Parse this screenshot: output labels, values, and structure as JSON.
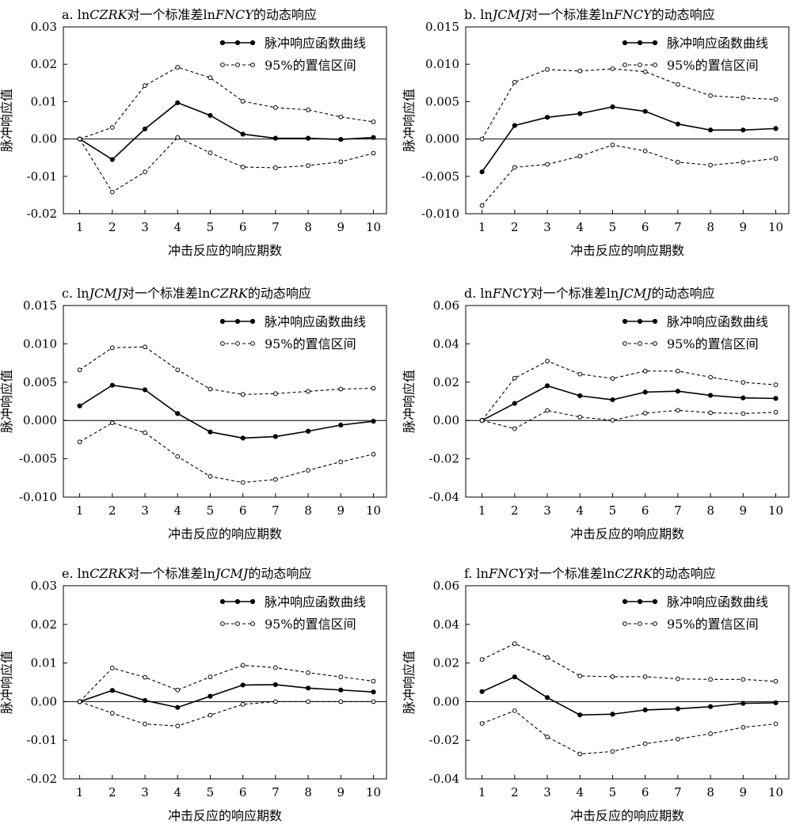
{
  "legend": {
    "irf": "脉冲响应函数曲线",
    "ci": "95%的置信区间"
  },
  "chart_data": [
    {
      "type": "line",
      "title_parts": [
        {
          "text": "a. ln",
          "italic": false
        },
        {
          "text": "CZRK",
          "italic": true
        },
        {
          "text": "对一个标准差ln",
          "italic": false
        },
        {
          "text": "FNCY",
          "italic": true
        },
        {
          "text": "的动态响应",
          "italic": false
        }
      ],
      "xlabel": "冲击反应的响应期数",
      "ylabel": "脉冲响应值",
      "x": [
        1,
        2,
        3,
        4,
        5,
        6,
        7,
        8,
        9,
        10
      ],
      "xlim": [
        0.5,
        10.4
      ],
      "ylim": [
        -0.02,
        0.03
      ],
      "yticks": [
        "0.03",
        "0.02",
        "0.01",
        "0.00",
        "-0.01",
        "-0.02"
      ],
      "ytick_values": [
        0.03,
        0.02,
        0.01,
        0.0,
        -0.01,
        -0.02
      ],
      "legend_position": "top-right",
      "series": [
        {
          "role": "irf",
          "values": [
            0.0,
            -0.0055,
            0.0027,
            0.0097,
            0.0063,
            0.0013,
            0.0002,
            0.0002,
            -0.0001,
            0.0004
          ]
        },
        {
          "role": "ci_upper",
          "values": [
            0.0,
            0.0031,
            0.0143,
            0.0192,
            0.0164,
            0.0101,
            0.0084,
            0.0078,
            0.0059,
            0.0046
          ]
        },
        {
          "role": "ci_lower",
          "values": [
            0.0,
            -0.0142,
            -0.0088,
            0.0004,
            -0.0037,
            -0.0075,
            -0.0077,
            -0.0071,
            -0.0061,
            -0.0038
          ]
        }
      ]
    },
    {
      "type": "line",
      "title_parts": [
        {
          "text": "b. ln",
          "italic": false
        },
        {
          "text": "JCMJ",
          "italic": true
        },
        {
          "text": "对一个标准差ln",
          "italic": false
        },
        {
          "text": "FNCY",
          "italic": true
        },
        {
          "text": "的动态响应",
          "italic": false
        }
      ],
      "xlabel": "冲击反应的响应期数",
      "ylabel": "脉冲响应值",
      "x": [
        1,
        2,
        3,
        4,
        5,
        6,
        7,
        8,
        9,
        10
      ],
      "xlim": [
        0.5,
        10.4
      ],
      "ylim": [
        -0.01,
        0.015
      ],
      "yticks": [
        "0.015",
        "0.010",
        "0.005",
        "0.000",
        "-0.005",
        "-0.010"
      ],
      "ytick_values": [
        0.015,
        0.01,
        0.005,
        0.0,
        -0.005,
        -0.01
      ],
      "legend_position": "top-right",
      "series": [
        {
          "role": "irf",
          "values": [
            -0.0044,
            0.0018,
            0.0029,
            0.0034,
            0.0043,
            0.0037,
            0.002,
            0.0012,
            0.0012,
            0.0014
          ]
        },
        {
          "role": "ci_upper",
          "values": [
            0.0,
            0.0076,
            0.0093,
            0.0091,
            0.0094,
            0.009,
            0.0073,
            0.0058,
            0.0055,
            0.0053
          ]
        },
        {
          "role": "ci_lower",
          "values": [
            -0.0089,
            -0.0038,
            -0.0034,
            -0.0023,
            -0.0008,
            -0.0016,
            -0.0031,
            -0.0035,
            -0.0031,
            -0.0026
          ]
        }
      ]
    },
    {
      "type": "line",
      "title_parts": [
        {
          "text": "c. ln",
          "italic": false
        },
        {
          "text": "JCMJ",
          "italic": true
        },
        {
          "text": "对一个标准差ln",
          "italic": false
        },
        {
          "text": "CZRK",
          "italic": true
        },
        {
          "text": "的动态响应",
          "italic": false
        }
      ],
      "xlabel": "冲击反应的响应期数",
      "ylabel": "脉冲响应值",
      "x": [
        1,
        2,
        3,
        4,
        5,
        6,
        7,
        8,
        9,
        10
      ],
      "xlim": [
        0.5,
        10.4
      ],
      "ylim": [
        -0.01,
        0.015
      ],
      "yticks": [
        "0.015",
        "0.010",
        "0.005",
        "0.000",
        "-0.005",
        "-0.010"
      ],
      "ytick_values": [
        0.015,
        0.01,
        0.005,
        0.0,
        -0.005,
        -0.01
      ],
      "legend_position": "top-right",
      "series": [
        {
          "role": "irf",
          "values": [
            0.0019,
            0.0046,
            0.004,
            0.0009,
            -0.0015,
            -0.0023,
            -0.0021,
            -0.0014,
            -0.0006,
            -0.0001
          ]
        },
        {
          "role": "ci_upper",
          "values": [
            0.0066,
            0.0095,
            0.0096,
            0.0066,
            0.0041,
            0.0034,
            0.0035,
            0.0038,
            0.0041,
            0.0042
          ]
        },
        {
          "role": "ci_lower",
          "values": [
            -0.0028,
            -0.0003,
            -0.0016,
            -0.0047,
            -0.0073,
            -0.0081,
            -0.0077,
            -0.0065,
            -0.0054,
            -0.0044
          ]
        }
      ]
    },
    {
      "type": "line",
      "title_parts": [
        {
          "text": "d. ln",
          "italic": false
        },
        {
          "text": "FNCY",
          "italic": true
        },
        {
          "text": "对一个标准差ln",
          "italic": false
        },
        {
          "text": "JCMJ",
          "italic": true
        },
        {
          "text": "的动态响应",
          "italic": false
        }
      ],
      "xlabel": "冲击反应的响应期数",
      "ylabel": "脉冲响应值",
      "x": [
        1,
        2,
        3,
        4,
        5,
        6,
        7,
        8,
        9,
        10
      ],
      "xlim": [
        0.5,
        10.4
      ],
      "ylim": [
        -0.04,
        0.06
      ],
      "yticks": [
        "0.06",
        "0.04",
        "0.02",
        "0.00",
        "-0.02",
        "-0.04"
      ],
      "ytick_values": [
        0.06,
        0.04,
        0.02,
        0.0,
        -0.02,
        -0.04
      ],
      "legend_position": "top-right",
      "series": [
        {
          "role": "irf",
          "values": [
            0.0,
            0.0089,
            0.0181,
            0.0129,
            0.0108,
            0.0148,
            0.0153,
            0.0131,
            0.0118,
            0.0115
          ]
        },
        {
          "role": "ci_upper",
          "values": [
            0.0,
            0.0221,
            0.031,
            0.0242,
            0.0219,
            0.0258,
            0.0258,
            0.0226,
            0.0199,
            0.0186
          ]
        },
        {
          "role": "ci_lower",
          "values": [
            0.0,
            -0.0043,
            0.0052,
            0.0018,
            0.0001,
            0.0038,
            0.0053,
            0.004,
            0.0036,
            0.0043
          ]
        }
      ]
    },
    {
      "type": "line",
      "title_parts": [
        {
          "text": "e. ln",
          "italic": false
        },
        {
          "text": "CZRK",
          "italic": true
        },
        {
          "text": "对一个标准差ln",
          "italic": false
        },
        {
          "text": "JCMJ",
          "italic": true
        },
        {
          "text": "的动态响应",
          "italic": false
        }
      ],
      "xlabel": "冲击反应的响应期数",
      "ylabel": "脉冲响应值",
      "x": [
        1,
        2,
        3,
        4,
        5,
        6,
        7,
        8,
        9,
        10
      ],
      "xlim": [
        0.5,
        10.4
      ],
      "ylim": [
        -0.02,
        0.03
      ],
      "yticks": [
        "0.03",
        "0.02",
        "0.01",
        "0.00",
        "-0.01",
        "-0.02"
      ],
      "ytick_values": [
        0.03,
        0.02,
        0.01,
        0.0,
        -0.01,
        -0.02
      ],
      "legend_position": "top-right",
      "series": [
        {
          "role": "irf",
          "values": [
            0.0,
            0.0029,
            0.0003,
            -0.0015,
            0.0014,
            0.0043,
            0.0044,
            0.0035,
            0.003,
            0.0025
          ]
        },
        {
          "role": "ci_upper",
          "values": [
            0.0,
            0.0087,
            0.0063,
            0.003,
            0.0064,
            0.0094,
            0.0088,
            0.0075,
            0.0064,
            0.0053
          ]
        },
        {
          "role": "ci_lower",
          "values": [
            0.0,
            -0.003,
            -0.0058,
            -0.0063,
            -0.0035,
            -0.0007,
            0.0,
            0.0,
            0.0,
            0.0
          ]
        }
      ]
    },
    {
      "type": "line",
      "title_parts": [
        {
          "text": "f. ln",
          "italic": false
        },
        {
          "text": "FNCY",
          "italic": true
        },
        {
          "text": "对一个标准差ln",
          "italic": false
        },
        {
          "text": "CZRK",
          "italic": true
        },
        {
          "text": "的动态响应",
          "italic": false
        }
      ],
      "xlabel": "冲击反应的响应期数",
      "ylabel": "脉冲响应值",
      "x": [
        1,
        2,
        3,
        4,
        5,
        6,
        7,
        8,
        9,
        10
      ],
      "xlim": [
        0.5,
        10.4
      ],
      "ylim": [
        -0.04,
        0.06
      ],
      "yticks": [
        "0.06",
        "0.04",
        "0.02",
        "0.00",
        "-0.02",
        "-0.04"
      ],
      "ytick_values": [
        0.06,
        0.04,
        0.02,
        0.0,
        -0.02,
        -0.04
      ],
      "legend_position": "top-right",
      "series": [
        {
          "role": "irf",
          "values": [
            0.0052,
            0.0128,
            0.0021,
            -0.0069,
            -0.0065,
            -0.0043,
            -0.0037,
            -0.0026,
            -0.0009,
            -0.0006
          ]
        },
        {
          "role": "ci_upper",
          "values": [
            0.0218,
            0.03,
            0.0228,
            0.0133,
            0.0129,
            0.0129,
            0.0118,
            0.0115,
            0.0115,
            0.0105
          ]
        },
        {
          "role": "ci_lower",
          "values": [
            -0.0113,
            -0.0047,
            -0.0183,
            -0.0271,
            -0.0258,
            -0.0218,
            -0.0194,
            -0.0166,
            -0.0133,
            -0.0115
          ]
        }
      ]
    }
  ]
}
